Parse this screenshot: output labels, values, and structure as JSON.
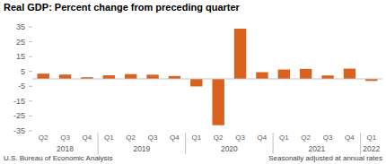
{
  "chart_data": {
    "type": "bar",
    "title": "Real GDP:  Percent change from preceding quarter",
    "categories": [
      "Q2",
      "Q3",
      "Q4",
      "Q1",
      "Q2",
      "Q3",
      "Q4",
      "Q1",
      "Q2",
      "Q3",
      "Q4",
      "Q1",
      "Q2",
      "Q3",
      "Q4",
      "Q1"
    ],
    "values": [
      3.5,
      2.9,
      1.1,
      2.4,
      3.2,
      2.8,
      1.9,
      -5.1,
      -31.2,
      33.8,
      4.5,
      6.3,
      6.7,
      2.3,
      6.9,
      -1.4
    ],
    "groups": [
      {
        "label": "2018",
        "count": 3
      },
      {
        "label": "2019",
        "count": 4
      },
      {
        "label": "2020",
        "count": 4
      },
      {
        "label": "2021",
        "count": 4
      },
      {
        "label": "2022",
        "count": 1
      }
    ],
    "color": "#d9631e",
    "ylim": [
      -35,
      35
    ],
    "yticks": [
      -35,
      -25,
      -15,
      -5,
      5,
      15,
      25,
      35
    ],
    "grid": false,
    "annotations": [
      "U.S. Bureau of Economic Analysis",
      "Seasonally adjusted at annual rates"
    ]
  }
}
